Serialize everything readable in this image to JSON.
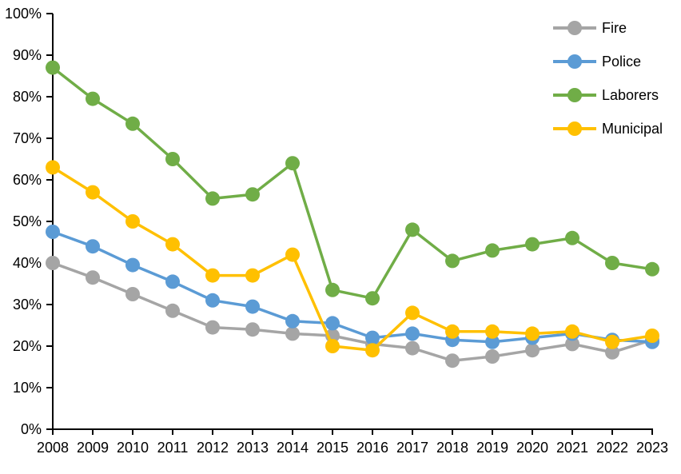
{
  "chart_data": {
    "type": "line",
    "title": "",
    "xlabel": "",
    "ylabel": "",
    "categories": [
      "2008",
      "2009",
      "2010",
      "2011",
      "2012",
      "2013",
      "2014",
      "2015",
      "2016",
      "2017",
      "2018",
      "2019",
      "2020",
      "2021",
      "2022",
      "2023"
    ],
    "series": [
      {
        "name": "Fire",
        "color": "#a5a5a5",
        "values": [
          40,
          36.5,
          32.5,
          28.5,
          24.5,
          24,
          23,
          22.5,
          20.5,
          19.5,
          16.5,
          17.5,
          19,
          20.5,
          18.5,
          21.5
        ]
      },
      {
        "name": "Police",
        "color": "#5b9bd5",
        "values": [
          47.5,
          44,
          39.5,
          35.5,
          31,
          29.5,
          26,
          25.5,
          22,
          23,
          21.5,
          21,
          22,
          23,
          21.5,
          21
        ]
      },
      {
        "name": "Laborers",
        "color": "#70ad47",
        "values": [
          87,
          79.5,
          73.5,
          65,
          55.5,
          56.5,
          64,
          33.5,
          31.5,
          48,
          40.5,
          43,
          44.5,
          46,
          40,
          38.5
        ]
      },
      {
        "name": "Municipal",
        "color": "#ffc000",
        "values": [
          63,
          57,
          50,
          44.5,
          37,
          37,
          42,
          20,
          19,
          28,
          23.5,
          23.5,
          23,
          23.5,
          21,
          22.5
        ]
      }
    ],
    "ylim": [
      0,
      100
    ],
    "ytick_step": 10,
    "ytick_labels": [
      "0%",
      "10%",
      "20%",
      "30%",
      "40%",
      "50%",
      "60%",
      "70%",
      "80%",
      "90%",
      "100%"
    ],
    "grid": false,
    "legend_position": "top-right",
    "axis_color": "#000000",
    "background": "#ffffff",
    "marker": "circle"
  }
}
